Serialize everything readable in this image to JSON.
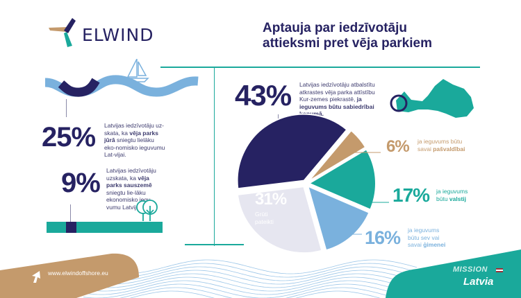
{
  "header": {
    "brand": "ELWIND",
    "title_line1": "Aptauja par iedzīvotāju",
    "title_line2": "attieksmi pret vēja parkiem"
  },
  "left": {
    "sea": {
      "value": "25%",
      "text_pre": "Latvijas iedzīvotāju uz-skata, ka ",
      "text_bold": "vēja parks jūrā",
      "text_post": " sniegtu lielāku eko-nomisko ieguvumu Lat-vijai."
    },
    "land": {
      "value": "9%",
      "text_pre": "Latvijas iedzīvotāju uzskata, ka ",
      "text_bold": "vēja parks sauszemē",
      "text_post": " sniegtu lie-lāku ekonomisko iegu-vumu Latvijai."
    }
  },
  "main": {
    "value": "43%",
    "text_pre": "Latvijas iedzīvotāju atbalstītu atkrastes vēja parka attīstību Kur-zemes piekrastē, ",
    "text_bold": "ja ieguvums būtu sabiedrībai kopumā."
  },
  "chart_data": {
    "type": "pie",
    "slices": [
      {
        "value": 43,
        "label": "43%",
        "desc": "ja ieguvums būtu sabiedrībai kopumā",
        "color": "#262262"
      },
      {
        "value": 6,
        "label": "6%",
        "desc_pre": "ja ieguvums būtu savai ",
        "desc_bold": "pašvaldībai",
        "color": "#c49a6c"
      },
      {
        "value": 17,
        "label": "17%",
        "desc_pre": "ja ieguvums būtu ",
        "desc_bold": "valstij",
        "color": "#1aa99b"
      },
      {
        "value": 16,
        "label": "16%",
        "desc_pre": "ja ieguvums būtu sev vai savai ",
        "desc_bold": "ģimenei",
        "color": "#7ab1dd"
      },
      {
        "value": 31,
        "label": "31%",
        "desc": "Grūti pateikti",
        "color": "#e6e6f0"
      }
    ]
  },
  "footer": {
    "url": "www.elwindoffshore.eu",
    "mission": "MISSION",
    "country": "Latvia"
  },
  "colors": {
    "navy": "#262262",
    "teal": "#1aa99b",
    "tan": "#c49a6c",
    "lightblue": "#7ab1dd"
  }
}
